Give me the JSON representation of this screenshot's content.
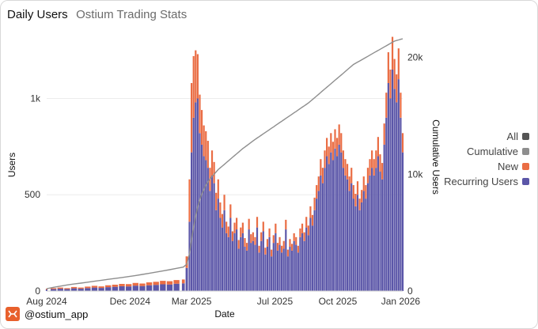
{
  "header": {
    "title": "Daily Users",
    "subtitle": "Ostium Trading Stats"
  },
  "footer": {
    "handle": "@ostium_app"
  },
  "colors": {
    "recurring": "#5b56a8",
    "new": "#ea6d44",
    "cumulative": "#8e8e8e",
    "all": "#555555",
    "grid": "#ececec"
  },
  "legend": [
    {
      "label": "All",
      "color": "#555555"
    },
    {
      "label": "Cumulative",
      "color": "#8e8e8e"
    },
    {
      "label": "New",
      "color": "#ea6d44"
    },
    {
      "label": "Recurring Users",
      "color": "#5b56a8"
    }
  ],
  "chart_data": {
    "type": "bar",
    "stacked": true,
    "title": "Daily Users",
    "subtitle": "Ostium Trading Stats",
    "xlabel": "Date",
    "ylabel": "Users",
    "y2label": "Cumulative Users",
    "ylim": [
      0,
      1310
    ],
    "y2lim": [
      0,
      21600
    ],
    "yticks": [
      0,
      500,
      1000
    ],
    "ytick_labels": [
      "0",
      "500",
      "1k"
    ],
    "y2ticks": [
      0,
      10000,
      20000
    ],
    "y2tick_labels": [
      "0",
      "10k",
      "20k"
    ],
    "x_ticks": [
      {
        "label": "Aug 2024",
        "day": 0
      },
      {
        "label": "Dec 2024",
        "day": 122
      },
      {
        "label": "Mar 2025",
        "day": 212
      },
      {
        "label": "Jul 2025",
        "day": 334
      },
      {
        "label": "Oct 2025",
        "day": 426
      },
      {
        "label": "Jan 2026",
        "day": 518
      }
    ],
    "grid": true,
    "legend_position": "right",
    "series_meta": [
      {
        "name": "Recurring Users",
        "color": "#5b56a8",
        "kind": "bar"
      },
      {
        "name": "New",
        "color": "#ea6d44",
        "kind": "bar"
      },
      {
        "name": "Cumulative",
        "color": "#8e8e8e",
        "kind": "line",
        "axis": "right"
      }
    ],
    "x_days": [
      0,
      10,
      20,
      30,
      40,
      50,
      60,
      70,
      80,
      90,
      100,
      110,
      120,
      130,
      140,
      150,
      160,
      170,
      180,
      190,
      200,
      205,
      209,
      212,
      215,
      218,
      221,
      224,
      227,
      230,
      233,
      236,
      239,
      242,
      245,
      248,
      251,
      254,
      257,
      260,
      263,
      266,
      269,
      272,
      275,
      278,
      281,
      284,
      287,
      290,
      293,
      296,
      299,
      302,
      305,
      308,
      311,
      314,
      317,
      320,
      323,
      326,
      329,
      332,
      335,
      338,
      341,
      344,
      347,
      350,
      353,
      356,
      359,
      362,
      365,
      368,
      371,
      374,
      377,
      380,
      383,
      386,
      389,
      392,
      395,
      398,
      401,
      404,
      407,
      410,
      413,
      416,
      419,
      422,
      425,
      428,
      431,
      434,
      437,
      440,
      443,
      446,
      449,
      452,
      455,
      458,
      461,
      464,
      467,
      470,
      473,
      476,
      479,
      482,
      485,
      488,
      491,
      494,
      497,
      500,
      503,
      506,
      509,
      512,
      515,
      518,
      521
    ],
    "recurring": [
      8,
      10,
      12,
      10,
      14,
      12,
      15,
      18,
      16,
      20,
      22,
      25,
      24,
      28,
      26,
      30,
      32,
      35,
      34,
      38,
      40,
      120,
      360,
      720,
      900,
      980,
      1000,
      820,
      760,
      700,
      680,
      640,
      520,
      600,
      560,
      420,
      480,
      380,
      330,
      420,
      300,
      280,
      380,
      260,
      300,
      320,
      220,
      280,
      300,
      230,
      210,
      320,
      250,
      260,
      240,
      330,
      200,
      260,
      310,
      190,
      230,
      280,
      180,
      250,
      300,
      210,
      240,
      200,
      220,
      320,
      180,
      230,
      210,
      260,
      240,
      200,
      280,
      300,
      260,
      330,
      290,
      380,
      340,
      420,
      480,
      520,
      600,
      560,
      640,
      700,
      660,
      720,
      680,
      740,
      700,
      760,
      720,
      640,
      600,
      580,
      520,
      560,
      480,
      440,
      500,
      420,
      460,
      520,
      480,
      560,
      600,
      640,
      600,
      640,
      700,
      620,
      580,
      760,
      900,
      1080,
      1000,
      1150,
      1050,
      980,
      1100,
      900,
      720
    ],
    "new": [
      4,
      5,
      6,
      5,
      7,
      6,
      8,
      9,
      8,
      10,
      11,
      12,
      12,
      14,
      13,
      15,
      16,
      18,
      17,
      19,
      20,
      60,
      220,
      360,
      320,
      270,
      230,
      200,
      180,
      160,
      150,
      140,
      120,
      130,
      110,
      90,
      100,
      80,
      70,
      80,
      60,
      55,
      70,
      50,
      55,
      60,
      45,
      50,
      55,
      45,
      40,
      55,
      45,
      45,
      40,
      55,
      35,
      45,
      50,
      35,
      40,
      45,
      35,
      40,
      50,
      40,
      40,
      35,
      40,
      50,
      35,
      40,
      35,
      40,
      40,
      35,
      45,
      50,
      45,
      55,
      50,
      60,
      55,
      65,
      70,
      75,
      85,
      80,
      90,
      95,
      90,
      100,
      95,
      100,
      95,
      105,
      100,
      90,
      85,
      80,
      75,
      80,
      70,
      65,
      70,
      60,
      65,
      75,
      70,
      80,
      85,
      90,
      85,
      90,
      100,
      90,
      85,
      110,
      130,
      160,
      150,
      170,
      155,
      145,
      160,
      130,
      100
    ],
    "cumulative": [
      200,
      320,
      420,
      520,
      600,
      680,
      760,
      840,
      920,
      1000,
      1080,
      1160,
      1240,
      1330,
      1420,
      1520,
      1620,
      1720,
      1830,
      1940,
      2050,
      2300,
      3200,
      4400,
      5500,
      6400,
      7200,
      7800,
      8300,
      8700,
      9050,
      9350,
      9600,
      9800,
      10000,
      10200,
      10400,
      10550,
      10700,
      10850,
      11000,
      11150,
      11300,
      11450,
      11600,
      11750,
      11900,
      12050,
      12200,
      12330,
      12460,
      12590,
      12720,
      12850,
      12980,
      13100,
      13220,
      13340,
      13460,
      13580,
      13700,
      13820,
      13940,
      14060,
      14180,
      14300,
      14420,
      14540,
      14660,
      14780,
      14900,
      15020,
      15140,
      15260,
      15380,
      15500,
      15620,
      15740,
      15860,
      15980,
      16100,
      16250,
      16400,
      16550,
      16700,
      16850,
      17000,
      17150,
      17300,
      17450,
      17600,
      17750,
      17900,
      18050,
      18200,
      18350,
      18500,
      18650,
      18800,
      18950,
      19100,
      19250,
      19400,
      19500,
      19600,
      19700,
      19800,
      19900,
      20000,
      20100,
      20200,
      20300,
      20400,
      20500,
      20600,
      20700,
      20800,
      20900,
      21000,
      21100,
      21200,
      21300,
      21400,
      21450,
      21500,
      21550,
      21600
    ]
  }
}
